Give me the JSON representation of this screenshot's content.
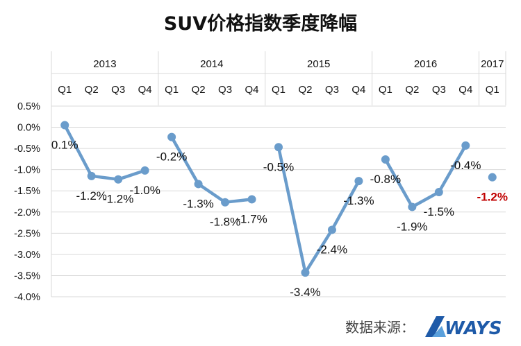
{
  "chart_data": {
    "type": "line",
    "title": "SUV价格指数季度降幅",
    "years": [
      "2013",
      "2014",
      "2015",
      "2016",
      "2017"
    ],
    "quarter_labels": [
      "Q1",
      "Q2",
      "Q3",
      "Q4"
    ],
    "yticks": [
      "0.5%",
      "0.0%",
      "-0.5%",
      "-1.0%",
      "-1.5%",
      "-2.0%",
      "-2.5%",
      "-3.0%",
      "-3.5%",
      "-4.0%"
    ],
    "ylim": [
      -4.0,
      0.5
    ],
    "grid": true,
    "series": [
      {
        "color": "#6a9ccb",
        "highlight_color": "#c00000",
        "points": [
          {
            "year": "2013",
            "quarter": "Q1",
            "value": 0.05,
            "label": "0.1%"
          },
          {
            "year": "2013",
            "quarter": "Q2",
            "value": -1.15,
            "label": "-1.2%"
          },
          {
            "year": "2013",
            "quarter": "Q3",
            "value": -1.23,
            "label": "-1.2%"
          },
          {
            "year": "2013",
            "quarter": "Q4",
            "value": -1.02,
            "label": "-1.0%"
          },
          {
            "year": "2014",
            "quarter": "Q1",
            "value": -0.23,
            "label": "-0.2%"
          },
          {
            "year": "2014",
            "quarter": "Q2",
            "value": -1.34,
            "label": "-1.3%"
          },
          {
            "year": "2014",
            "quarter": "Q3",
            "value": -1.77,
            "label": "-1.8%"
          },
          {
            "year": "2014",
            "quarter": "Q4",
            "value": -1.7,
            "label": "-1.7%"
          },
          {
            "year": "2015",
            "quarter": "Q1",
            "value": -0.47,
            "label": "-0.5%"
          },
          {
            "year": "2015",
            "quarter": "Q2",
            "value": -3.43,
            "label": "-3.4%"
          },
          {
            "year": "2015",
            "quarter": "Q3",
            "value": -2.42,
            "label": "-2.4%"
          },
          {
            "year": "2015",
            "quarter": "Q4",
            "value": -1.27,
            "label": "-1.3%"
          },
          {
            "year": "2016",
            "quarter": "Q1",
            "value": -0.76,
            "label": "-0.8%"
          },
          {
            "year": "2016",
            "quarter": "Q2",
            "value": -1.88,
            "label": "-1.9%"
          },
          {
            "year": "2016",
            "quarter": "Q3",
            "value": -1.53,
            "label": "-1.5%"
          },
          {
            "year": "2016",
            "quarter": "Q4",
            "value": -0.43,
            "label": "-0.4%"
          },
          {
            "year": "2017",
            "quarter": "Q1",
            "value": -1.18,
            "label": "-1.2%",
            "highlight": true
          }
        ]
      }
    ]
  },
  "source_label": "数据来源：",
  "brand_name": "WAYS",
  "colors": {
    "line": "#6a9ccb",
    "grid": "#d9d9d9",
    "highlight": "#c00000",
    "brand": "#1e5aa8"
  }
}
